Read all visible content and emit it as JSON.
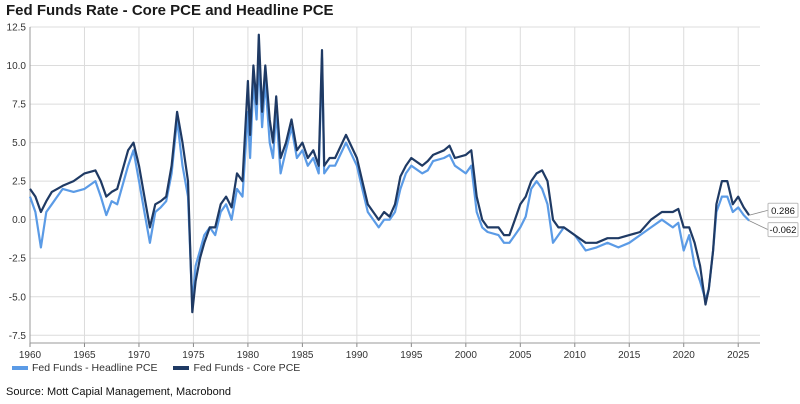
{
  "title": "Fed Funds Rate - Core PCE and Headline PCE",
  "source": "Source: Mott Capial Management, Macrobond",
  "colors": {
    "headline": "#5b9be6",
    "core": "#1f3a64",
    "grid": "#dcdcdc"
  },
  "chart_data": {
    "type": "line",
    "title": "Fed Funds Rate - Core PCE and Headline PCE",
    "xlabel": "",
    "ylabel": "",
    "xlim": [
      1960,
      2027
    ],
    "ylim": [
      -8,
      12.5
    ],
    "x_ticks": [
      "1960",
      "1965",
      "1970",
      "1975",
      "1980",
      "1985",
      "1990",
      "1995",
      "2000",
      "2005",
      "2010",
      "2015",
      "2020",
      "2025"
    ],
    "y_ticks": [
      "12.5",
      "10.0",
      "7.5",
      "5.0",
      "2.5",
      "0.0",
      "-2.5",
      "-5.0",
      "-7.5"
    ],
    "grid": true,
    "legend_position": "bottom-left",
    "end_labels": [
      "0.286",
      "-0.062"
    ],
    "series": [
      {
        "name": "Fed Funds - Headline PCE",
        "x": [
          1960,
          1960.5,
          1961,
          1961.5,
          1962,
          1962.5,
          1963,
          1964,
          1965,
          1966,
          1966.5,
          1967,
          1967.5,
          1968,
          1969,
          1969.5,
          1970,
          1970.5,
          1971,
          1971.5,
          1972,
          1972.5,
          1973,
          1973.5,
          1974,
          1974.5,
          1974.9,
          1975.2,
          1975.6,
          1976,
          1976.5,
          1977,
          1977.5,
          1978,
          1978.5,
          1979,
          1979.5,
          1980,
          1980.2,
          1980.5,
          1980.8,
          1981,
          1981.3,
          1981.6,
          1982,
          1982.3,
          1982.6,
          1983,
          1983.5,
          1984,
          1984.5,
          1985,
          1985.5,
          1986,
          1986.5,
          1986.8,
          1987,
          1987.5,
          1988,
          1989,
          1990,
          1990.5,
          1991,
          1992,
          1992.5,
          1993,
          1993.5,
          1994,
          1994.5,
          1995,
          1996,
          1996.5,
          1997,
          1998,
          1998.5,
          1999,
          2000,
          2000.5,
          2001,
          2001.5,
          2002,
          2003,
          2003.5,
          2004,
          2004.5,
          2005,
          2005.5,
          2006,
          2006.5,
          2007,
          2007.5,
          2008,
          2008.5,
          2009,
          2010,
          2011,
          2012,
          2013,
          2014,
          2015,
          2016,
          2017,
          2018,
          2019,
          2019.5,
          2020,
          2020.5,
          2021,
          2021.5,
          2022,
          2022.3,
          2022.7,
          2023,
          2023.5,
          2024,
          2024.5,
          2025,
          2025.5,
          2026
        ],
        "values": [
          1.5,
          0.5,
          -1.8,
          0.5,
          1.0,
          1.5,
          2.0,
          1.8,
          2.0,
          2.5,
          1.5,
          0.3,
          1.2,
          1.0,
          3.5,
          4.5,
          2.5,
          0.5,
          -1.5,
          0.5,
          0.8,
          1.2,
          3.0,
          6.5,
          3.5,
          1.5,
          -5.5,
          -3.0,
          -2.0,
          -1.0,
          -0.5,
          -1.0,
          0.5,
          1.0,
          0.0,
          2.0,
          1.5,
          7.0,
          4.0,
          9.0,
          6.5,
          10.5,
          6.0,
          9.0,
          5.0,
          4.0,
          7.0,
          3.0,
          4.5,
          6.0,
          4.0,
          4.5,
          3.5,
          4.0,
          3.0,
          10.5,
          3.0,
          3.5,
          3.5,
          5.0,
          3.5,
          2.0,
          0.5,
          -0.5,
          0.0,
          0.0,
          0.5,
          2.0,
          3.0,
          3.5,
          3.0,
          3.2,
          3.8,
          4.0,
          4.2,
          3.5,
          3.0,
          3.5,
          0.5,
          -0.5,
          -0.8,
          -1.0,
          -1.5,
          -1.5,
          -1.0,
          -0.5,
          0.2,
          2.0,
          2.5,
          2.0,
          1.0,
          -1.5,
          -1.0,
          -0.5,
          -1.0,
          -2.0,
          -1.8,
          -1.5,
          -1.8,
          -1.5,
          -1.0,
          -0.5,
          0.0,
          -0.5,
          -0.2,
          -2.0,
          -1.0,
          -3.0,
          -4.0,
          -5.2,
          -4.5,
          -2.0,
          0.5,
          1.5,
          1.5,
          0.5,
          0.8,
          0.3,
          -0.062
        ]
      },
      {
        "name": "Fed Funds - Core PCE",
        "x": [
          1960,
          1960.5,
          1961,
          1961.5,
          1962,
          1962.5,
          1963,
          1964,
          1965,
          1966,
          1966.5,
          1967,
          1967.5,
          1968,
          1969,
          1969.5,
          1970,
          1970.5,
          1971,
          1971.5,
          1972,
          1972.5,
          1973,
          1973.5,
          1974,
          1974.5,
          1974.9,
          1975.2,
          1975.6,
          1976,
          1976.5,
          1977,
          1977.5,
          1978,
          1978.5,
          1979,
          1979.5,
          1980,
          1980.2,
          1980.5,
          1980.8,
          1981,
          1981.3,
          1981.6,
          1982,
          1982.3,
          1982.6,
          1983,
          1983.5,
          1984,
          1984.5,
          1985,
          1985.5,
          1986,
          1986.5,
          1986.8,
          1987,
          1987.5,
          1988,
          1989,
          1990,
          1990.5,
          1991,
          1992,
          1992.5,
          1993,
          1993.5,
          1994,
          1994.5,
          1995,
          1996,
          1996.5,
          1997,
          1998,
          1998.5,
          1999,
          2000,
          2000.5,
          2001,
          2001.5,
          2002,
          2003,
          2003.5,
          2004,
          2004.5,
          2005,
          2005.5,
          2006,
          2006.5,
          2007,
          2007.5,
          2008,
          2008.5,
          2009,
          2010,
          2011,
          2012,
          2013,
          2014,
          2015,
          2016,
          2017,
          2018,
          2019,
          2019.5,
          2020,
          2020.5,
          2021,
          2021.5,
          2022,
          2022.3,
          2022.7,
          2023,
          2023.5,
          2024,
          2024.5,
          2025,
          2025.5,
          2026
        ],
        "values": [
          2.0,
          1.5,
          0.5,
          1.2,
          1.8,
          2.0,
          2.2,
          2.5,
          3.0,
          3.2,
          2.5,
          1.5,
          1.8,
          2.0,
          4.5,
          5.0,
          3.5,
          1.5,
          -0.5,
          1.0,
          1.2,
          1.5,
          3.5,
          7.0,
          5.0,
          2.5,
          -6.0,
          -4.0,
          -2.5,
          -1.5,
          -0.5,
          -0.5,
          1.0,
          1.5,
          0.8,
          3.0,
          2.5,
          9.0,
          5.5,
          10.0,
          7.5,
          12.0,
          7.0,
          10.0,
          6.5,
          5.0,
          8.0,
          4.0,
          5.0,
          6.5,
          4.5,
          5.0,
          4.0,
          4.5,
          3.5,
          11.0,
          3.5,
          4.0,
          4.0,
          5.5,
          4.0,
          2.5,
          1.0,
          0.0,
          0.5,
          0.2,
          1.0,
          2.8,
          3.5,
          4.0,
          3.5,
          3.8,
          4.2,
          4.5,
          4.8,
          4.0,
          4.2,
          4.5,
          1.5,
          0.0,
          -0.5,
          -0.5,
          -1.0,
          -1.0,
          0.0,
          1.0,
          1.5,
          2.5,
          3.0,
          3.2,
          2.5,
          0.0,
          -0.5,
          -0.5,
          -1.0,
          -1.5,
          -1.5,
          -1.2,
          -1.2,
          -1.0,
          -0.8,
          0.0,
          0.5,
          0.5,
          0.7,
          -0.5,
          -0.5,
          -1.5,
          -3.0,
          -5.5,
          -4.5,
          -2.0,
          1.0,
          2.5,
          2.5,
          1.0,
          1.5,
          0.8,
          0.286
        ]
      }
    ]
  }
}
